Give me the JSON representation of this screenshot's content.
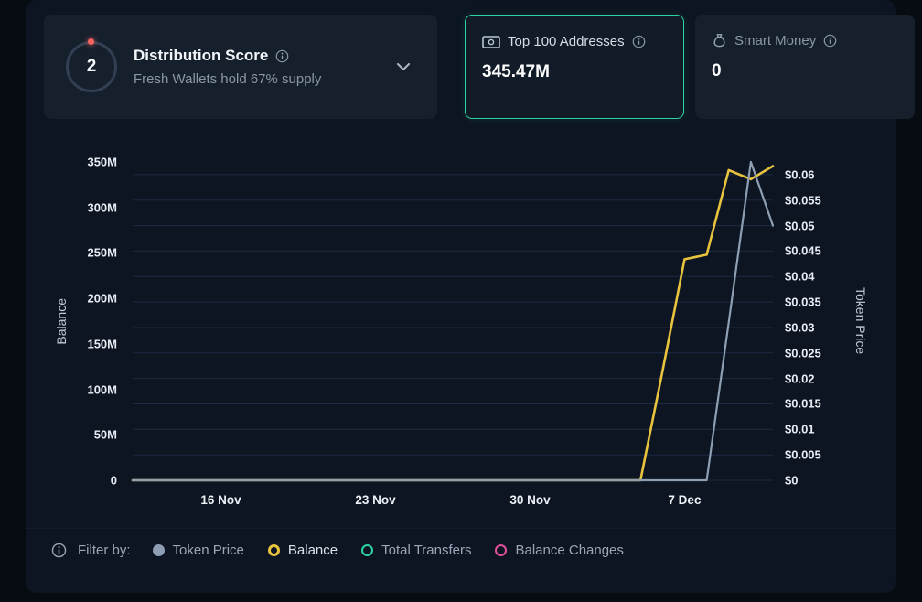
{
  "cards": {
    "distribution": {
      "score": "2",
      "title": "Distribution Score",
      "subtitle": "Fresh Wallets hold 67% supply",
      "dropdown_icon": "chevron-down-icon",
      "info_icon": "info-icon"
    },
    "top100": {
      "title": "Top 100 Addresses",
      "value": "345.47M",
      "icon": "banknote-icon",
      "info_icon": "info-icon",
      "accent_color": "#2ed3a3"
    },
    "smart_money": {
      "title": "Smart Money",
      "value": "0",
      "icon": "money-bag-icon",
      "info_icon": "info-icon"
    }
  },
  "legend": {
    "icon": "info-icon",
    "filter_label": "Filter by:",
    "items": [
      {
        "label": "Token Price",
        "color": "#8e9fb3",
        "marker": "filled"
      },
      {
        "label": "Balance",
        "color": "#e8c33e",
        "marker": "ring-thick"
      },
      {
        "label": "Total Transfers",
        "color": "#2ed3a3",
        "marker": "ring"
      },
      {
        "label": "Balance Changes",
        "color": "#e0519b",
        "marker": "ring"
      }
    ]
  },
  "chart_data": {
    "type": "line",
    "gridline_color": "#1c2a41",
    "x": [
      "12 Nov",
      "13 Nov",
      "14 Nov",
      "15 Nov",
      "16 Nov",
      "17 Nov",
      "18 Nov",
      "19 Nov",
      "20 Nov",
      "21 Nov",
      "22 Nov",
      "23 Nov",
      "24 Nov",
      "25 Nov",
      "26 Nov",
      "27 Nov",
      "28 Nov",
      "29 Nov",
      "30 Nov",
      "1 Dec",
      "2 Dec",
      "3 Dec",
      "4 Dec",
      "5 Dec",
      "6 Dec",
      "7 Dec",
      "8 Dec",
      "9 Dec",
      "10 Dec",
      "11 Dec"
    ],
    "x_ticks": [
      {
        "label": "16 Nov",
        "index": 4
      },
      {
        "label": "23 Nov",
        "index": 11
      },
      {
        "label": "30 Nov",
        "index": 18
      },
      {
        "label": "7 Dec",
        "index": 25
      }
    ],
    "left_axis": {
      "label": "Balance",
      "min": 0,
      "max": 350000000,
      "ticks": [
        {
          "label": "350M",
          "value": 350000000
        },
        {
          "label": "300M",
          "value": 300000000
        },
        {
          "label": "250M",
          "value": 250000000
        },
        {
          "label": "200M",
          "value": 200000000
        },
        {
          "label": "150M",
          "value": 150000000
        },
        {
          "label": "100M",
          "value": 100000000
        },
        {
          "label": "50M",
          "value": 50000000
        },
        {
          "label": "0",
          "value": 0
        }
      ]
    },
    "right_axis": {
      "label": "Token Price",
      "min": 0,
      "max": 0.0625,
      "ticks": [
        {
          "label": "$0.06",
          "value": 0.06
        },
        {
          "label": "$0.055",
          "value": 0.055
        },
        {
          "label": "$0.05",
          "value": 0.05
        },
        {
          "label": "$0.045",
          "value": 0.045
        },
        {
          "label": "$0.04",
          "value": 0.04
        },
        {
          "label": "$0.035",
          "value": 0.035
        },
        {
          "label": "$0.03",
          "value": 0.03
        },
        {
          "label": "$0.025",
          "value": 0.025
        },
        {
          "label": "$0.02",
          "value": 0.02
        },
        {
          "label": "$0.015",
          "value": 0.015
        },
        {
          "label": "$0.01",
          "value": 0.01
        },
        {
          "label": "$0.005",
          "value": 0.005
        },
        {
          "label": "$0",
          "value": 0
        }
      ]
    },
    "series": [
      {
        "name": "Balance",
        "axis": "left",
        "color": "#e8c33e",
        "values": [
          0,
          0,
          0,
          0,
          0,
          0,
          0,
          0,
          0,
          0,
          0,
          0,
          0,
          0,
          0,
          0,
          0,
          0,
          0,
          0,
          0,
          0,
          0,
          0,
          120000000,
          243000000,
          248000000,
          341000000,
          331000000,
          345470000
        ]
      },
      {
        "name": "Token Price",
        "axis": "right",
        "color": "#8e9fb3",
        "values": [
          0,
          0,
          0,
          0,
          0,
          0,
          0,
          0,
          0,
          0,
          0,
          0,
          0,
          0,
          0,
          0,
          0,
          0,
          0,
          0,
          0,
          0,
          0,
          0,
          0,
          0,
          0,
          0.031,
          0.0625,
          0.05
        ]
      }
    ]
  }
}
